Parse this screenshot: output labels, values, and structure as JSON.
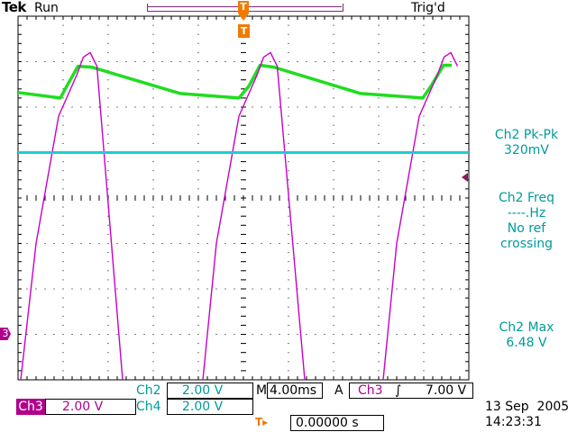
{
  "header": {
    "brand": "Tek",
    "run_state": "Run",
    "trigger_state": "Trig'd"
  },
  "markers": {
    "trigger_marker": "T",
    "channel3_marker": "3"
  },
  "measurements": {
    "pkpk_label": "Ch2 Pk-Pk",
    "pkpk_value": "320mV",
    "freq_label": "Ch2 Freq",
    "freq_value": "----.Hz",
    "freq_note_1": "No ref",
    "freq_note_2": "crossing",
    "max_label": "Ch2 Max",
    "max_value": "6.48 V"
  },
  "channels": {
    "ch2_label": "Ch2",
    "ch2_scale": "2.00 V",
    "ch3_label": "Ch3",
    "ch3_scale": "2.00 V",
    "ch4_label": "Ch4",
    "ch4_scale": "2.00 V"
  },
  "timebase": {
    "label": "M",
    "value": "4.00ms",
    "acquisition": "A",
    "trigger_source": "Ch3",
    "trigger_slope": "∫",
    "trigger_level": "7.00 V"
  },
  "trigger_position": {
    "icon": "T▸",
    "value": "0.00000 s"
  },
  "datetime": {
    "date": "13 Sep  2005",
    "time": "14:23:31"
  },
  "colors": {
    "ch2": "#1fdd1f",
    "ch3": "#c800c8",
    "ch4": "#19d0d0",
    "measurement_text": "#009a9a",
    "grid": "#000000",
    "trigger_marker": "#f07a00"
  },
  "chart_data": {
    "type": "line",
    "grid": true,
    "xlim": [
      0,
      10
    ],
    "ylim": [
      -4,
      4
    ],
    "x_units": "div",
    "y_units": "div",
    "series": [
      {
        "name": "Ch2",
        "x": [
          0,
          0.94,
          1.08,
          1.33,
          1.63,
          3.6,
          4.9,
          5.12,
          5.37,
          5.67,
          7.6,
          8.98,
          9.16,
          9.44,
          9.62
        ],
        "y": [
          2.32,
          2.2,
          2.46,
          2.9,
          2.88,
          2.3,
          2.2,
          2.46,
          2.92,
          2.88,
          2.3,
          2.2,
          2.46,
          2.92,
          2.92
        ]
      },
      {
        "name": "Ch3",
        "x": [
          0.06,
          0.4,
          0.9,
          1.3,
          1.45,
          1.6,
          1.75,
          2.32,
          3.0,
          4.1,
          4.4,
          4.9,
          5.3,
          5.45,
          5.6,
          5.75,
          6.36,
          7.0,
          8.1,
          8.4,
          8.9,
          9.3,
          9.45,
          9.6,
          9.75
        ],
        "y": [
          -4,
          -1,
          1.8,
          2.7,
          3.1,
          3.2,
          2.9,
          -4,
          null,
          -4,
          -1,
          1.8,
          2.7,
          3.1,
          3.2,
          2.9,
          -4,
          null,
          -4,
          -1,
          1.8,
          2.7,
          3.1,
          3.2,
          2.9
        ]
      },
      {
        "name": "Ch4",
        "x": [
          0,
          10
        ],
        "y": [
          1.0,
          1.0
        ]
      }
    ]
  }
}
